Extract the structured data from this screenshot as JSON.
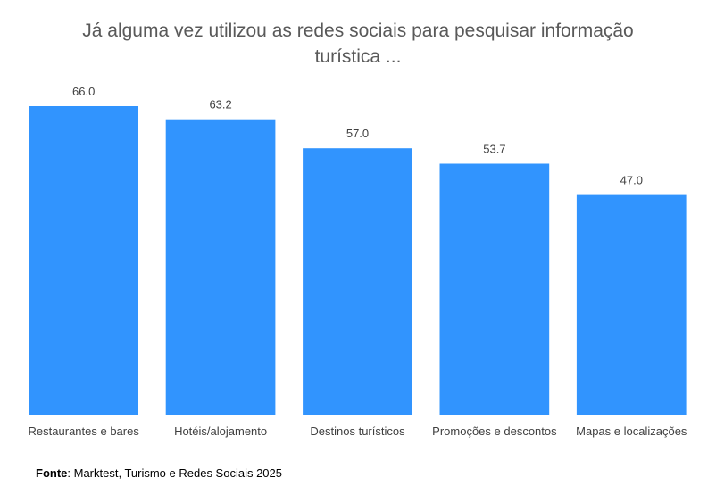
{
  "chart_data": {
    "type": "bar",
    "title_line1": "Já alguma vez utilizou as redes sociais para pesquisar informação",
    "title_line2": "turística ...",
    "categories": [
      "Restaurantes e bares",
      "Hotéis/alojamento",
      "Destinos turísticos",
      "Promoções e descontos",
      "Mapas e localizações"
    ],
    "values": [
      66.0,
      63.2,
      57.0,
      53.7,
      47.0
    ],
    "data_labels": [
      "66.0",
      "63.2",
      "57.0",
      "53.7",
      "47.0"
    ],
    "xlabel": "",
    "ylabel": "",
    "ylim": [
      0,
      66.0
    ],
    "grid": false,
    "bar_color": "#3194FE"
  },
  "source": {
    "label": "Fonte",
    "text": ": Marktest, Turismo e Redes Sociais 2025"
  }
}
